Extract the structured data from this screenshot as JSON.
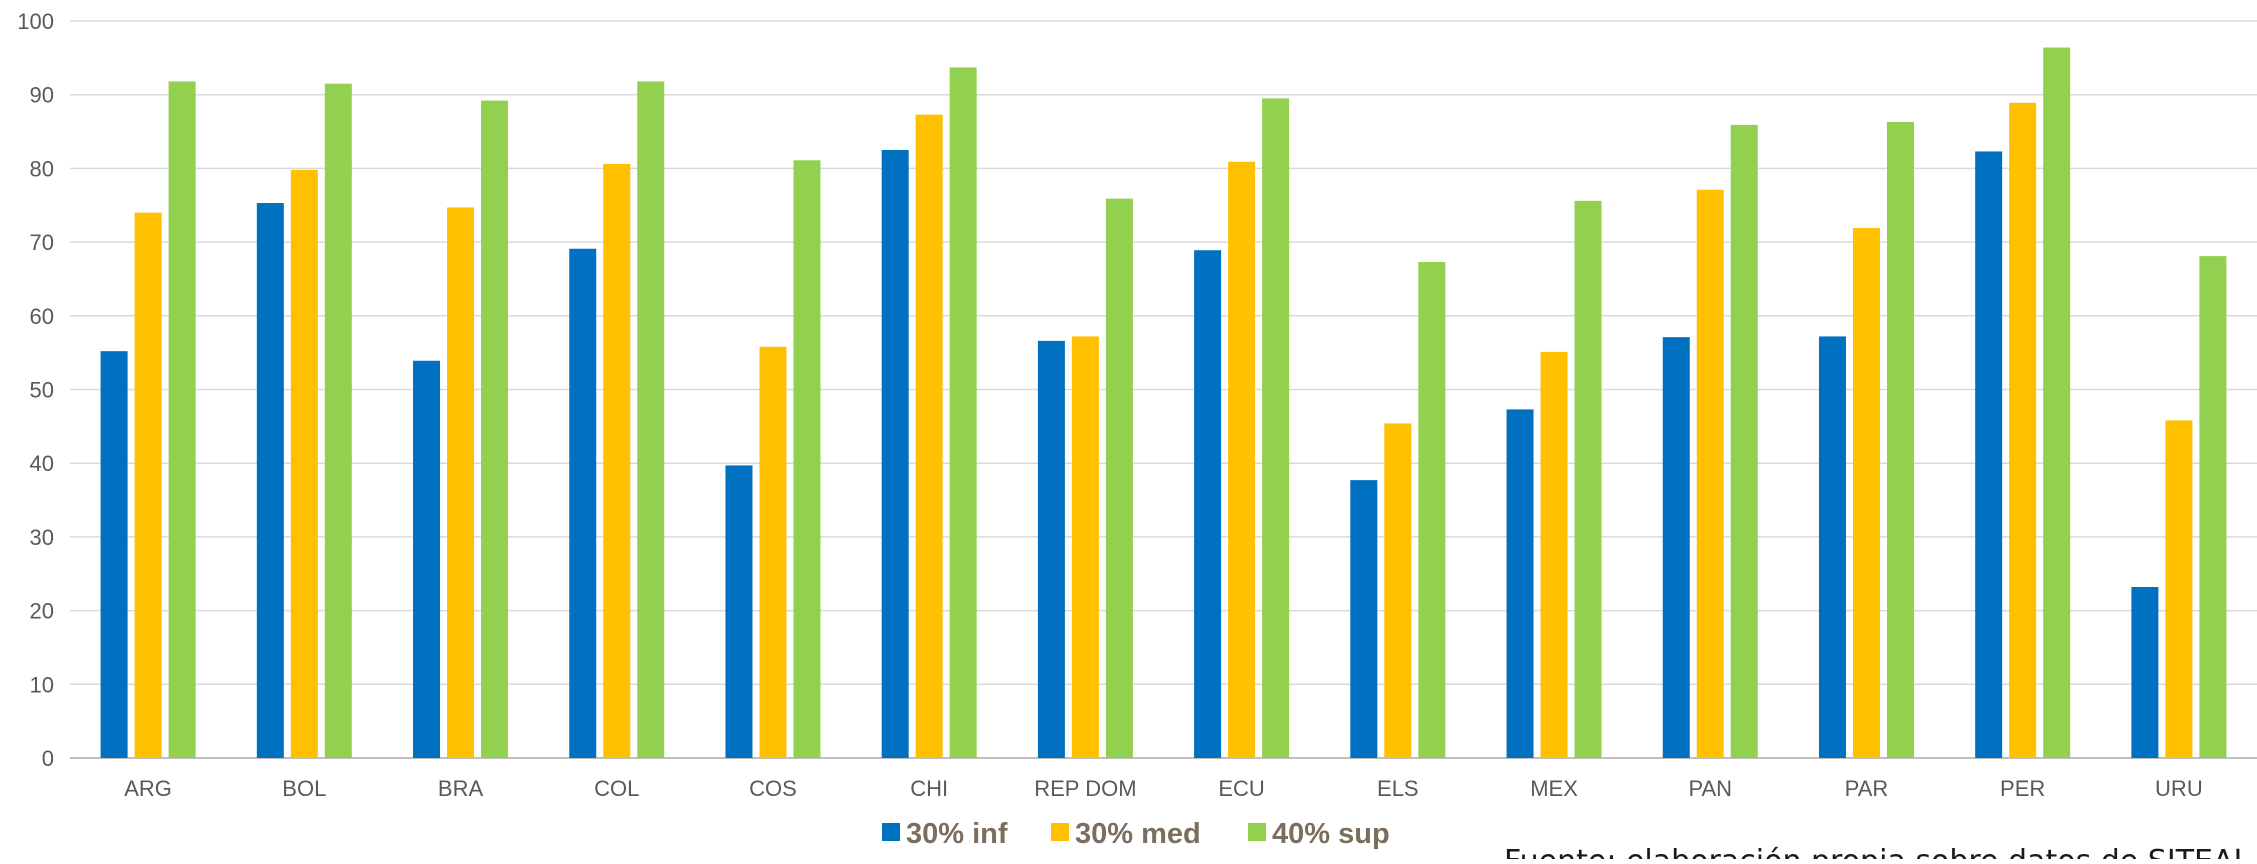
{
  "chart_data": {
    "type": "bar",
    "title": "",
    "xlabel": "",
    "ylabel": "",
    "ylim": [
      0,
      100
    ],
    "y_ticks": [
      0,
      10,
      20,
      30,
      40,
      50,
      60,
      70,
      80,
      90,
      100
    ],
    "grid": true,
    "legend_position": "bottom",
    "categories": [
      "ARG",
      "BOL",
      "BRA",
      "COL",
      "COS",
      "CHI",
      "REP DOM",
      "ECU",
      "ELS",
      "MEX",
      "PAN",
      "PAR",
      "PER",
      "URU"
    ],
    "series": [
      {
        "name": "30% inf",
        "color": "#0070c0",
        "values": [
          55.2,
          75.3,
          53.9,
          69.1,
          39.7,
          82.5,
          56.6,
          68.9,
          37.7,
          47.3,
          57.1,
          57.2,
          82.3,
          23.2
        ]
      },
      {
        "name": "30% med",
        "color": "#ffc000",
        "values": [
          74.0,
          79.8,
          74.7,
          80.6,
          55.8,
          87.3,
          57.2,
          80.9,
          45.4,
          55.1,
          77.1,
          71.9,
          88.9,
          45.8
        ]
      },
      {
        "name": "40% sup",
        "color": "#92d050",
        "values": [
          91.8,
          91.5,
          89.2,
          91.8,
          81.1,
          93.7,
          75.9,
          89.5,
          67.3,
          75.6,
          85.9,
          86.3,
          96.4,
          68.1
        ]
      }
    ],
    "annotation": "Fuente: elaboración propia sobre datos de SITEAL"
  }
}
